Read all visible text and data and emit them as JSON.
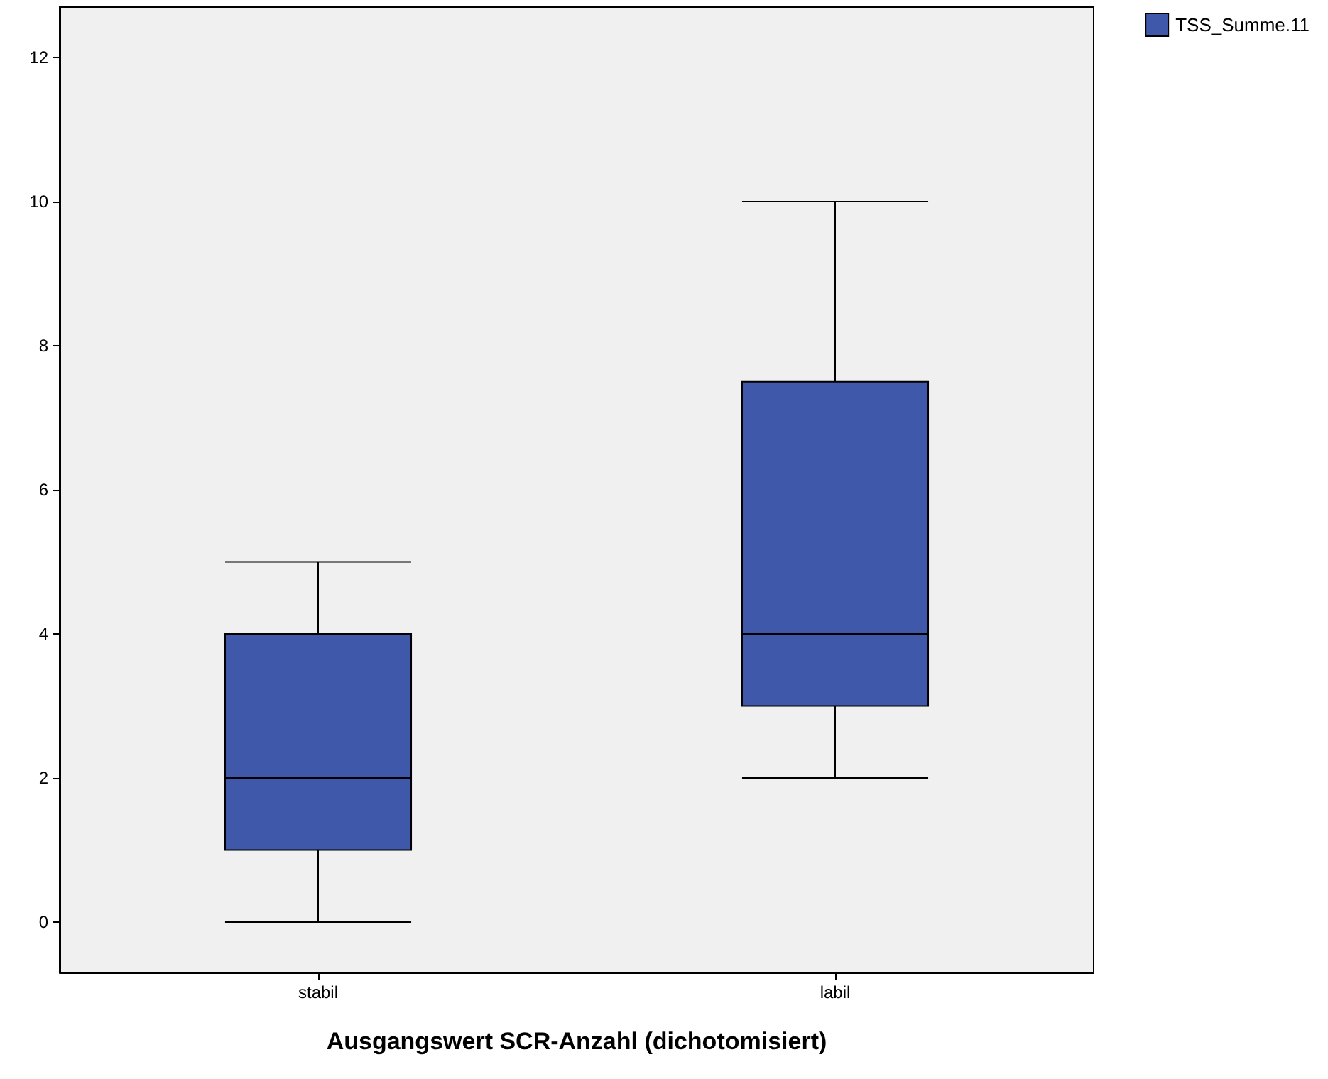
{
  "chart_data": {
    "type": "box",
    "xlabel": "Ausgangswert SCR-Anzahl (dichotomisiert)",
    "categories": [
      "stabil",
      "labil"
    ],
    "series": [
      {
        "name": "TSS_Summe.11",
        "color": "#3f58a9",
        "boxes": [
          {
            "low": 0,
            "q1": 1,
            "median": 2,
            "q3": 4,
            "high": 5
          },
          {
            "low": 2,
            "q1": 3,
            "median": 4,
            "q3": 7.5,
            "high": 10
          }
        ]
      }
    ],
    "ylim": [
      -0.7,
      12.7
    ],
    "yticks": [
      0,
      2,
      4,
      6,
      8,
      10,
      12
    ],
    "grid": false,
    "legend": "top right"
  }
}
